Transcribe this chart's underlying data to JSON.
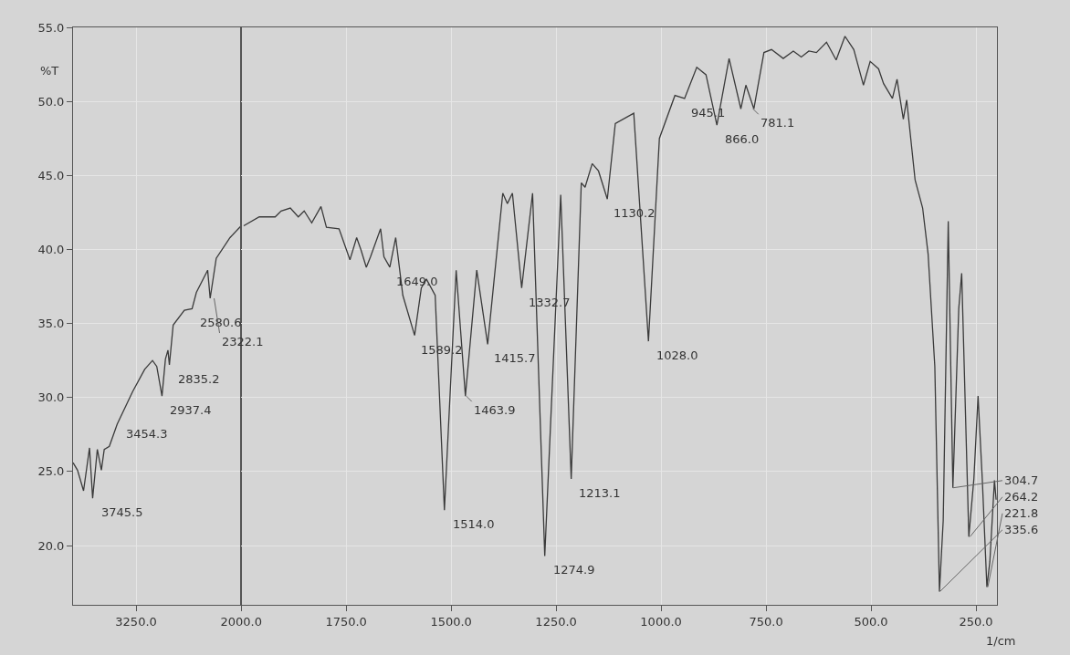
{
  "chart_data": [
    {
      "type": "line",
      "ylabel": "%T",
      "xlim": [
        4000,
        2000
      ],
      "xticks": [
        {
          "value": 3250,
          "label": "3250.0"
        },
        {
          "value": 2000,
          "label": "2000.0"
        }
      ],
      "ylim": [
        16,
        55
      ],
      "yticks": [
        {
          "value": 20,
          "label": "20.0"
        },
        {
          "value": 25,
          "label": "25.0"
        },
        {
          "value": 30,
          "label": "30.0"
        },
        {
          "value": 35,
          "label": "35.0"
        },
        {
          "value": 40,
          "label": "40.0"
        },
        {
          "value": 45,
          "label": "45.0"
        },
        {
          "value": 50,
          "label": "50.0"
        },
        {
          "value": 55,
          "label": "55.0"
        }
      ],
      "grid": true,
      "x": [
        4000,
        3947,
        3875,
        3804,
        3767,
        3711,
        3663,
        3629,
        3568,
        3475,
        3291,
        3148,
        3055,
        3004,
        2942,
        2901,
        2871,
        2854,
        2809,
        2676,
        2584,
        2533,
        2399,
        2369,
        2297,
        2133,
        2000
      ],
      "series": [
        {
          "color": "#3a3a3a",
          "values": [
            25.6,
            25.1,
            23.7,
            26.6,
            23.2,
            26.5,
            25.1,
            26.5,
            26.7,
            28.2,
            30.4,
            31.9,
            32.5,
            32.1,
            30.1,
            32.6,
            33.2,
            32.2,
            34.9,
            35.9,
            36.0,
            37.1,
            38.6,
            36.7,
            39.4,
            40.8,
            41.6
          ]
        }
      ],
      "annotations": [
        {
          "text": "3745.5",
          "x": 3745.5,
          "y": 23.2
        },
        {
          "text": "3454.3",
          "x": 3454.3,
          "y": 28.5
        },
        {
          "text": "2937.4",
          "x": 2937.4,
          "y": 30.1
        },
        {
          "text": "2835.2",
          "x": 2835.2,
          "y": 32.2
        },
        {
          "text": "2580.6",
          "x": 2580.6,
          "y": 36.0
        },
        {
          "text": "2322.1",
          "x": 2322.1,
          "y": 36.7
        }
      ]
    },
    {
      "type": "line",
      "xlabel": "1/cm",
      "xlim": [
        2000,
        200
      ],
      "xticks": [
        {
          "value": 1750,
          "label": "1750.0"
        },
        {
          "value": 1500,
          "label": "1500.0"
        },
        {
          "value": 1250,
          "label": "1250.0"
        },
        {
          "value": 1000,
          "label": "1000.0"
        },
        {
          "value": 750,
          "label": "750.0"
        },
        {
          "value": 500,
          "label": "500.0"
        },
        {
          "value": 250,
          "label": "250.0"
        }
      ],
      "ylim": [
        16,
        55
      ],
      "yticks": [
        20,
        25,
        30,
        35,
        40,
        45,
        50,
        55
      ],
      "grid": true,
      "tick_labels": "x",
      "x": [
        1994,
        1957,
        1919,
        1905,
        1883,
        1864,
        1850,
        1832,
        1810,
        1797,
        1767,
        1741,
        1725,
        1715,
        1702,
        1692,
        1668,
        1660,
        1646,
        1632,
        1615,
        1587,
        1571,
        1559,
        1538,
        1516,
        1488,
        1466,
        1439,
        1413,
        1377,
        1366,
        1354,
        1332,
        1306,
        1277,
        1239,
        1214,
        1190,
        1181,
        1164,
        1149,
        1128,
        1109,
        1065,
        1030,
        1004,
        967,
        944,
        915,
        893,
        867,
        838,
        810,
        798,
        779,
        755,
        737,
        709,
        685,
        666,
        648,
        630,
        606,
        583,
        562,
        541,
        518,
        502,
        482,
        470,
        449,
        438,
        423,
        415,
        395,
        377,
        364,
        348,
        337,
        328,
        316,
        305,
        291,
        284,
        267,
        255,
        245,
        235,
        224,
        217,
        206,
        202
      ],
      "series": [
        {
          "color": "#3a3a3a",
          "values": [
            41.6,
            42.2,
            42.2,
            42.6,
            42.8,
            42.2,
            42.6,
            41.8,
            42.9,
            41.5,
            41.4,
            39.3,
            40.8,
            40.0,
            38.8,
            39.5,
            41.4,
            39.5,
            38.8,
            40.8,
            36.9,
            34.2,
            37.4,
            38.0,
            36.9,
            22.4,
            38.6,
            30.1,
            38.6,
            33.6,
            43.8,
            43.1,
            43.8,
            37.4,
            43.8,
            19.3,
            43.7,
            24.5,
            44.5,
            44.2,
            45.8,
            45.3,
            43.4,
            48.5,
            49.2,
            33.8,
            47.5,
            50.4,
            50.2,
            52.3,
            51.8,
            48.4,
            52.9,
            49.5,
            51.1,
            49.5,
            53.3,
            53.5,
            52.9,
            53.4,
            53.0,
            53.4,
            53.3,
            54.0,
            52.8,
            54.4,
            53.5,
            51.1,
            52.7,
            52.2,
            51.2,
            50.2,
            51.5,
            48.8,
            50.1,
            44.7,
            42.8,
            39.7,
            32.1,
            16.9,
            21.7,
            41.9,
            23.9,
            36.0,
            38.4,
            20.6,
            24.5,
            30.1,
            24.5,
            17.2,
            18.9,
            24.4,
            23.1
          ]
        }
      ],
      "annotations": [
        {
          "text": "1649.0",
          "x": 1649,
          "y": 38.8
        },
        {
          "text": "1589.2",
          "x": 1589.2,
          "y": 34.2
        },
        {
          "text": "1514.0",
          "x": 1514,
          "y": 22.4
        },
        {
          "text": "1463.9",
          "x": 1463.9,
          "y": 30.1
        },
        {
          "text": "1415.7",
          "x": 1415.7,
          "y": 33.6
        },
        {
          "text": "1332.7",
          "x": 1332.7,
          "y": 37.4
        },
        {
          "text": "1274.9",
          "x": 1274.9,
          "y": 19.3
        },
        {
          "text": "1213.1",
          "x": 1213.1,
          "y": 24.5
        },
        {
          "text": "1130.2",
          "x": 1130.2,
          "y": 43.4
        },
        {
          "text": "1028.0",
          "x": 1028,
          "y": 33.8
        },
        {
          "text": "945.1",
          "x": 945.1,
          "y": 50.2
        },
        {
          "text": "866.0",
          "x": 866,
          "y": 48.4
        },
        {
          "text": "781.1",
          "x": 781.1,
          "y": 49.5
        },
        {
          "text": "335.6",
          "x": 335.6,
          "y": 16.9
        },
        {
          "text": "304.7",
          "x": 304.7,
          "y": 23.9
        },
        {
          "text": "264.2",
          "x": 264.2,
          "y": 20.6
        },
        {
          "text": "221.8",
          "x": 221.8,
          "y": 17.2
        }
      ]
    }
  ]
}
